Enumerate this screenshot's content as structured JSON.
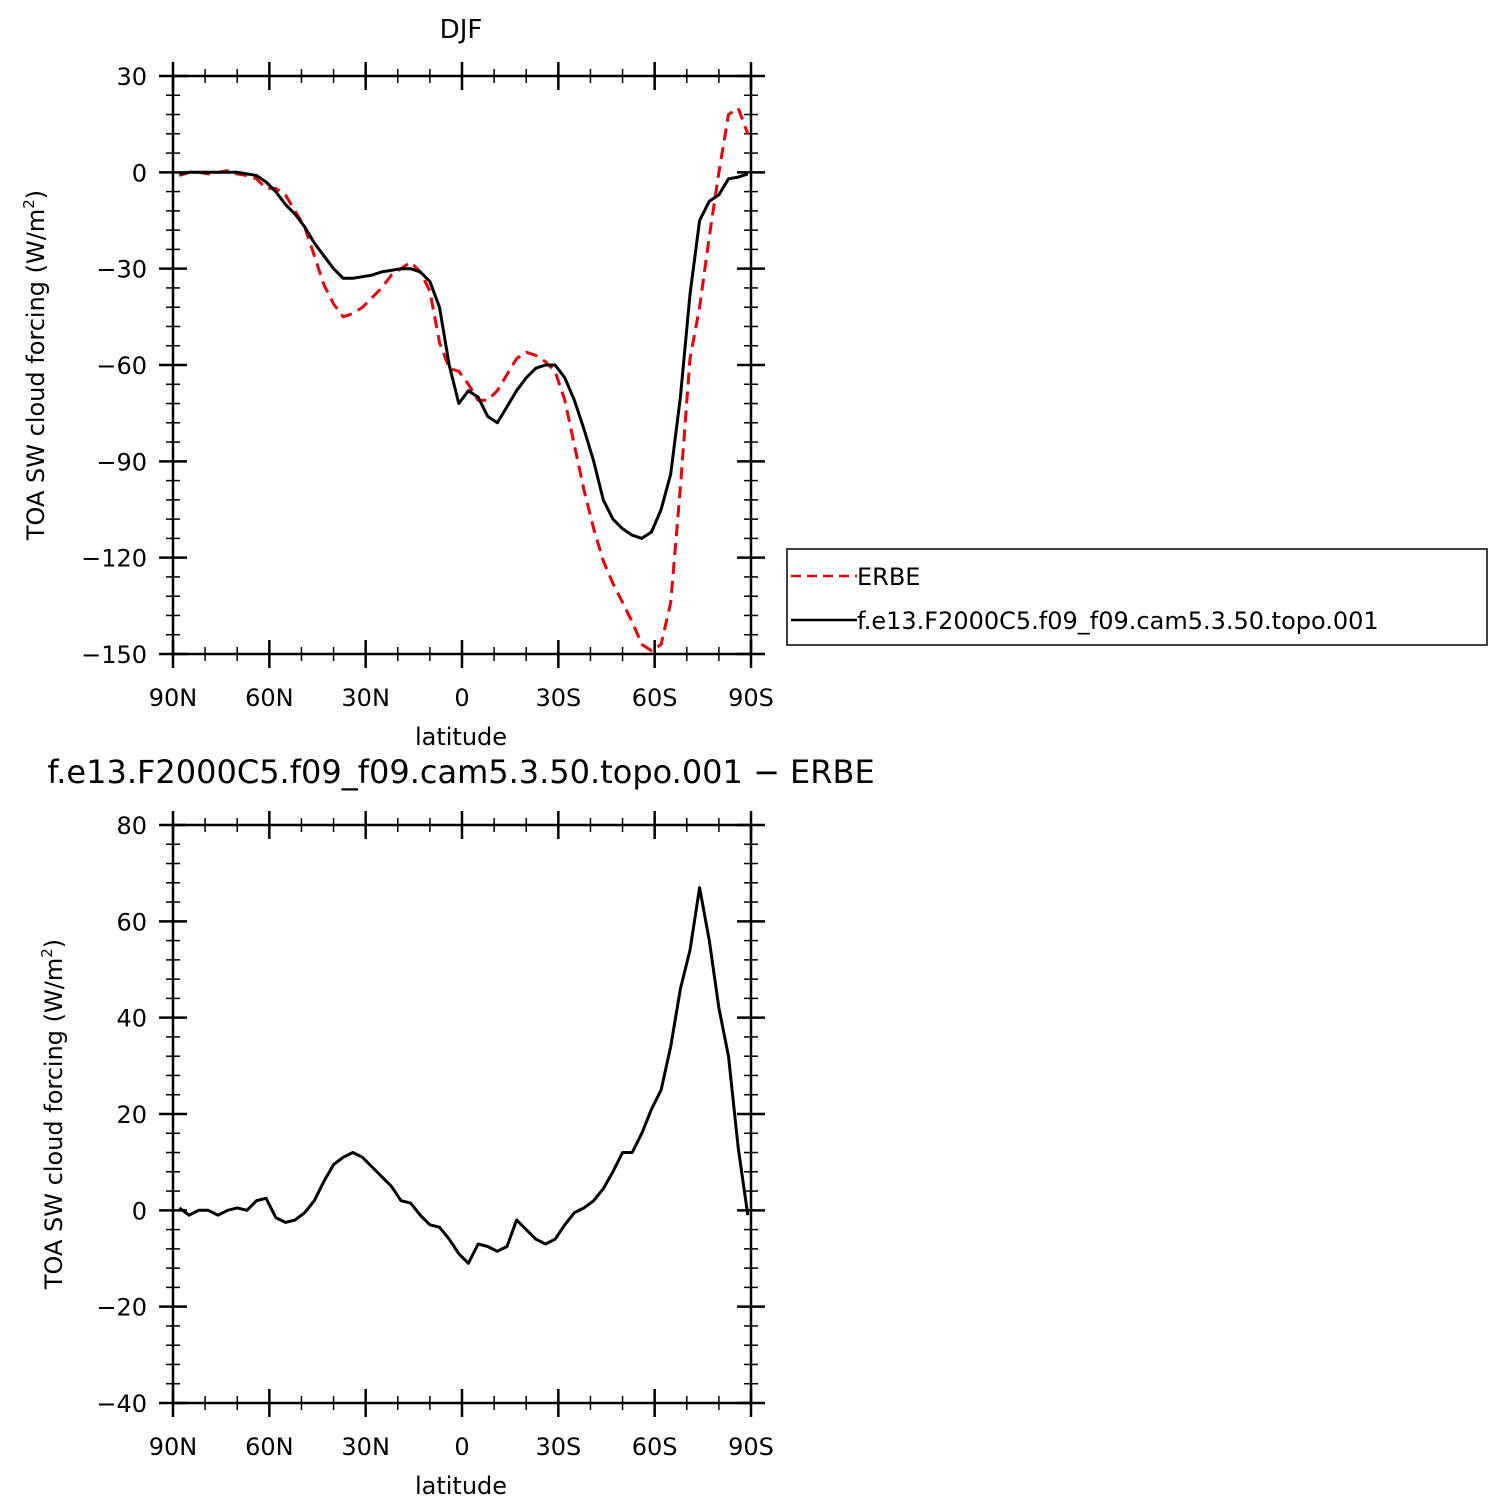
{
  "chart_data": [
    {
      "type": "line",
      "title": "DJF",
      "xlabel": "latitude",
      "ylabel": "TOA SW cloud forcing (W/m",
      "ylabel_sup": "2",
      "ylabel_end": ")",
      "xlim": [
        -90,
        90
      ],
      "ylim": [
        -150,
        30
      ],
      "xticks": [
        -90,
        -60,
        -30,
        0,
        30,
        60,
        90
      ],
      "xtick_labels": [
        "90N",
        "60N",
        "30N",
        "0",
        "30S",
        "60S",
        "90S"
      ],
      "yticks": [
        30,
        0,
        -30,
        -60,
        -90,
        -120,
        -150
      ],
      "ytick_labels": [
        "30",
        "0",
        "−30",
        "−60",
        "−90",
        "−120",
        "−150"
      ],
      "legend_position": "right",
      "series": [
        {
          "name": "ERBE",
          "color": "#e8000b",
          "dash": "dashed",
          "x": [
            -88,
            -85,
            -82,
            -79,
            -76,
            -73,
            -70,
            -67,
            -64,
            -61,
            -58,
            -55,
            -52,
            -49,
            -46,
            -43,
            -40,
            -37,
            -34,
            -31,
            -28,
            -25,
            -22,
            -19,
            -16,
            -13,
            -10,
            -7,
            -4,
            -1,
            2,
            5,
            8,
            11,
            14,
            17,
            20,
            23,
            26,
            29,
            32,
            35,
            38,
            41,
            44,
            47,
            50,
            53,
            56,
            59,
            62,
            65,
            68,
            71,
            74,
            77,
            80,
            83,
            86,
            89
          ],
          "values": [
            -1,
            0,
            0,
            -0.5,
            0,
            0.5,
            -0.5,
            -1,
            -2,
            -5,
            -5,
            -7,
            -12,
            -17,
            -26,
            -35,
            -41,
            -45,
            -44,
            -42,
            -39,
            -36,
            -32,
            -30,
            -28,
            -31,
            -37,
            -53,
            -61,
            -62,
            -66,
            -71,
            -71,
            -68,
            -63,
            -58,
            -56,
            -57,
            -59,
            -62,
            -71,
            -85,
            -99,
            -111,
            -121,
            -128,
            -134,
            -140,
            -147,
            -149,
            -147,
            -134,
            -98,
            -58,
            -42,
            -20,
            0,
            18,
            20,
            12
          ]
        },
        {
          "name": "f.e13.F2000C5.f09_f09.cam5.3.50.topo.001",
          "color": "#000000",
          "dash": "solid",
          "x": [
            -88,
            -85,
            -82,
            -79,
            -76,
            -73,
            -70,
            -67,
            -64,
            -61,
            -58,
            -55,
            -52,
            -49,
            -46,
            -43,
            -40,
            -37,
            -34,
            -31,
            -28,
            -25,
            -22,
            -19,
            -16,
            -13,
            -10,
            -7,
            -4,
            -1,
            2,
            5,
            8,
            11,
            14,
            17,
            20,
            23,
            26,
            29,
            32,
            35,
            38,
            41,
            44,
            47,
            50,
            53,
            56,
            59,
            62,
            65,
            68,
            71,
            74,
            77,
            80,
            83,
            86,
            89
          ],
          "values": [
            -0.5,
            0,
            0,
            0,
            0,
            0,
            0,
            -0.5,
            -1,
            -3,
            -6,
            -10,
            -13,
            -17,
            -22,
            -26,
            -30,
            -33,
            -33,
            -32.5,
            -32,
            -31,
            -30.5,
            -30,
            -30,
            -31,
            -34,
            -42,
            -60,
            -72,
            -68,
            -70,
            -76,
            -78,
            -73,
            -68,
            -64,
            -61,
            -60,
            -60,
            -64,
            -71,
            -80,
            -90,
            -102,
            -108,
            -111,
            -113,
            -114,
            -112,
            -105,
            -94,
            -70,
            -38,
            -15,
            -9,
            -7,
            -2,
            -1.5,
            -0.5
          ]
        }
      ]
    },
    {
      "type": "line",
      "title": "f.e13.F2000C5.f09_f09.cam5.3.50.topo.001 − ERBE",
      "xlabel": "latitude",
      "ylabel": "TOA SW cloud forcing (W/m",
      "ylabel_sup": "2",
      "ylabel_end": ")",
      "xlim": [
        -90,
        90
      ],
      "ylim": [
        -40,
        80
      ],
      "xticks": [
        -90,
        -60,
        -30,
        0,
        30,
        60,
        90
      ],
      "xtick_labels": [
        "90N",
        "60N",
        "30N",
        "0",
        "30S",
        "60S",
        "90S"
      ],
      "yticks": [
        80,
        60,
        40,
        20,
        0,
        -20,
        -40
      ],
      "ytick_labels": [
        "80",
        "60",
        "40",
        "20",
        "0",
        "−20",
        "−40"
      ],
      "series": [
        {
          "color": "#000000",
          "dash": "solid",
          "x": [
            -88,
            -85,
            -82,
            -79,
            -76,
            -73,
            -70,
            -67,
            -64,
            -61,
            -58,
            -55,
            -52,
            -49,
            -46,
            -43,
            -40,
            -37,
            -34,
            -31,
            -28,
            -25,
            -22,
            -19,
            -16,
            -13,
            -10,
            -7,
            -4,
            -1,
            2,
            5,
            8,
            11,
            14,
            17,
            20,
            23,
            26,
            29,
            32,
            35,
            38,
            41,
            44,
            47,
            50,
            53,
            56,
            59,
            62,
            65,
            68,
            71,
            74,
            77,
            80,
            83,
            86,
            89
          ],
          "values": [
            0.5,
            -1,
            0,
            0,
            -1,
            0,
            0.5,
            0,
            2,
            2.5,
            -1.5,
            -2.5,
            -2,
            -0.5,
            2,
            6,
            9.5,
            11,
            12,
            11,
            9,
            7,
            5,
            2,
            1.5,
            -1,
            -3,
            -3.5,
            -6,
            -9,
            -11,
            -7,
            -7.5,
            -8.5,
            -7.5,
            -2,
            -4,
            -6,
            -7,
            -6,
            -3,
            -0.5,
            0.5,
            2,
            4.5,
            8,
            12,
            12,
            16,
            21,
            25,
            34,
            46,
            54,
            67,
            56,
            42,
            32,
            13,
            -1
          ]
        }
      ]
    }
  ],
  "legend": {
    "entries": [
      "ERBE",
      "f.e13.F2000C5.f09_f09.cam5.3.50.topo.001"
    ]
  }
}
